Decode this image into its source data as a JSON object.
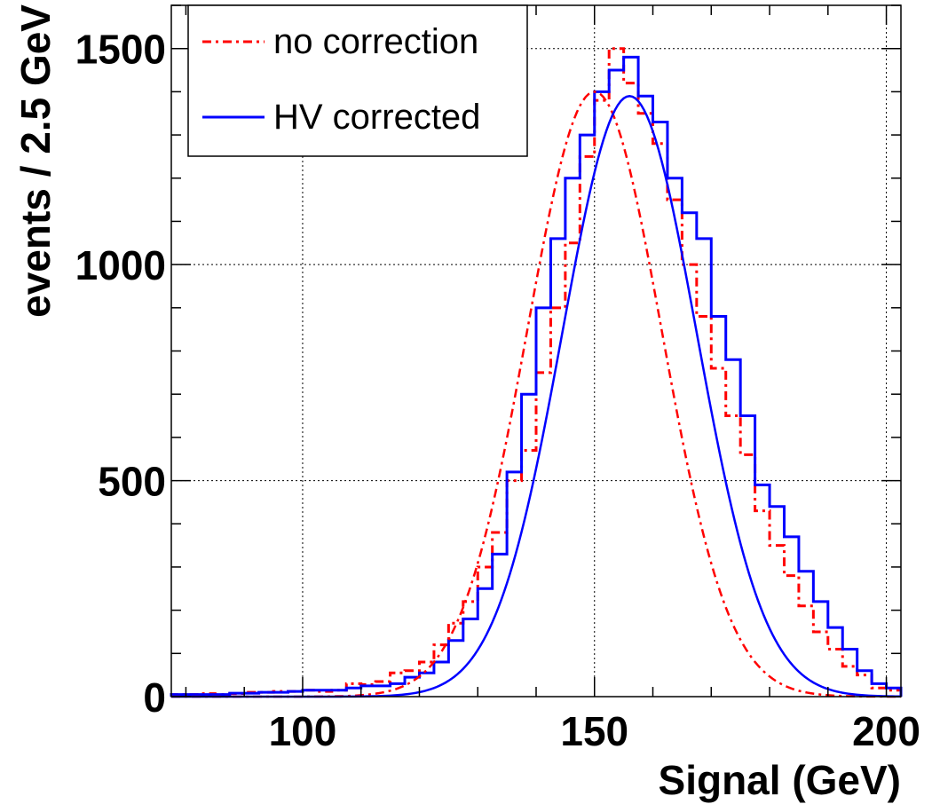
{
  "chart_data": {
    "type": "line",
    "xlabel": "Signal (GeV)",
    "ylabel": "events / 2.5 GeV",
    "xlim": [
      77.5,
      202.5
    ],
    "ylim": [
      0,
      1600
    ],
    "x_ticks": [
      "100",
      "150",
      "200"
    ],
    "y_ticks": [
      "0",
      "500",
      "1000",
      "1500"
    ],
    "grid": true,
    "legend_position": "top-left",
    "bin_edges": [
      77.5,
      80,
      82.5,
      85,
      87.5,
      90,
      92.5,
      95,
      97.5,
      100,
      102.5,
      105,
      107.5,
      110,
      112.5,
      115,
      117.5,
      120,
      122.5,
      125,
      127.5,
      130,
      132.5,
      135,
      137.5,
      140,
      142.5,
      145,
      147.5,
      150,
      152.5,
      155,
      157.5,
      160,
      162.5,
      165,
      167.5,
      170,
      172.5,
      175,
      177.5,
      180,
      182.5,
      185,
      187.5,
      190,
      192.5,
      195,
      197.5,
      200,
      202.5
    ],
    "series": [
      {
        "name": "no correction",
        "style": "histogram",
        "color": "#ff0000",
        "dash": "dashdot",
        "values": [
          5,
          5,
          7,
          5,
          7,
          10,
          10,
          12,
          12,
          15,
          12,
          15,
          30,
          28,
          35,
          55,
          60,
          80,
          120,
          170,
          220,
          300,
          380,
          500,
          570,
          750,
          900,
          1050,
          1250,
          1380,
          1500,
          1420,
          1350,
          1280,
          1150,
          1000,
          880,
          760,
          650,
          560,
          430,
          350,
          280,
          210,
          150,
          110,
          70,
          50,
          20,
          15
        ]
      },
      {
        "name": "HV corrected",
        "style": "histogram",
        "color": "#0000ff",
        "dash": "solid",
        "values": [
          5,
          5,
          5,
          5,
          8,
          8,
          10,
          10,
          12,
          15,
          15,
          15,
          20,
          25,
          25,
          30,
          45,
          55,
          80,
          130,
          180,
          250,
          330,
          520,
          700,
          900,
          1060,
          1200,
          1300,
          1400,
          1450,
          1480,
          1390,
          1330,
          1200,
          1120,
          1060,
          880,
          780,
          650,
          490,
          440,
          370,
          290,
          220,
          160,
          110,
          60,
          30,
          20
        ]
      },
      {
        "name": "no correction fit",
        "style": "gaussian",
        "color": "#ff0000",
        "dash": "dashdot",
        "amplitude": 1400,
        "mean": 150,
        "sigma": 11.5
      },
      {
        "name": "HV corrected fit",
        "style": "gaussian",
        "color": "#0000ff",
        "dash": "solid",
        "amplitude": 1390,
        "mean": 156,
        "sigma": 11.5
      }
    ]
  }
}
